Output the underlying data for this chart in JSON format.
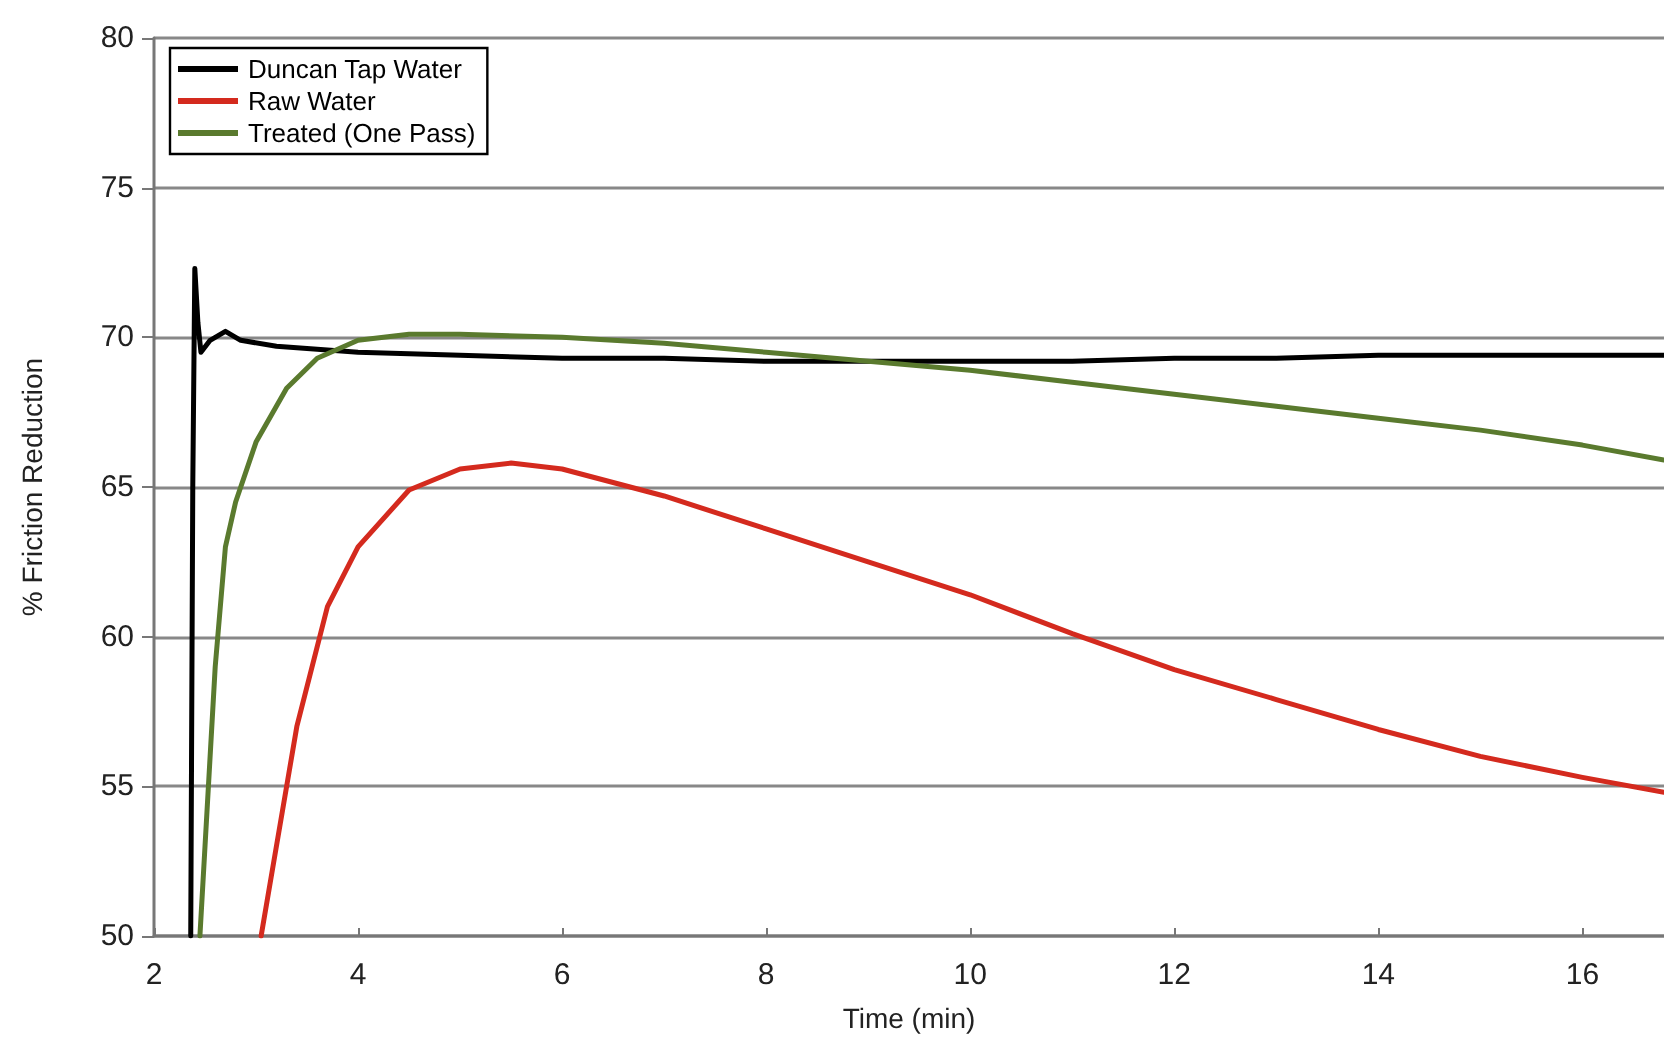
{
  "chart_data": {
    "type": "line",
    "xlabel": "Time (min)",
    "ylabel": "% Friction Reduction",
    "xlim": [
      2,
      16.8
    ],
    "xticks": [
      2,
      4,
      6,
      8,
      10,
      12,
      14,
      16
    ],
    "ylim": [
      50,
      80
    ],
    "yticks": [
      50,
      55,
      60,
      65,
      70,
      75,
      80
    ],
    "grid": "y",
    "legend": "top left",
    "marker": "none",
    "line_style": "solid",
    "series": [
      {
        "name": "Duncan Tap Water",
        "color": "#000000",
        "x": [
          2.36,
          2.38,
          2.4,
          2.43,
          2.46,
          2.55,
          2.7,
          2.85,
          3.2,
          3.6,
          4,
          5,
          6,
          7,
          8,
          9,
          10,
          11,
          12,
          13,
          14,
          15,
          16,
          16.8
        ],
        "values": [
          50,
          65,
          72.3,
          70.5,
          69.5,
          69.9,
          70.2,
          69.9,
          69.7,
          69.6,
          69.5,
          69.4,
          69.3,
          69.3,
          69.2,
          69.2,
          69.2,
          69.2,
          69.3,
          69.3,
          69.4,
          69.4,
          69.4,
          69.4
        ]
      },
      {
        "name": "Raw Water",
        "color": "#d42a1e",
        "x": [
          3.05,
          3.2,
          3.4,
          3.7,
          4,
          4.5,
          5,
          5.5,
          6,
          7,
          8,
          9,
          10,
          11,
          12,
          13,
          14,
          15,
          16,
          16.8
        ],
        "values": [
          50,
          53,
          57,
          61,
          63,
          64.9,
          65.6,
          65.8,
          65.6,
          64.7,
          63.6,
          62.5,
          61.4,
          60.1,
          58.9,
          57.9,
          56.9,
          56,
          55.3,
          54.8
        ]
      },
      {
        "name": "Treated (One Pass)",
        "color": "#5a7a2e",
        "x": [
          2.45,
          2.5,
          2.6,
          2.7,
          2.8,
          3,
          3.3,
          3.6,
          4,
          4.5,
          5,
          6,
          7,
          8,
          9,
          10,
          11,
          12,
          13,
          14,
          15,
          16,
          16.8
        ],
        "values": [
          50,
          53,
          59,
          63,
          64.5,
          66.5,
          68.3,
          69.3,
          69.9,
          70.1,
          70.1,
          70,
          69.8,
          69.5,
          69.2,
          68.9,
          68.5,
          68.1,
          67.7,
          67.3,
          66.9,
          66.4,
          65.9
        ]
      }
    ]
  }
}
